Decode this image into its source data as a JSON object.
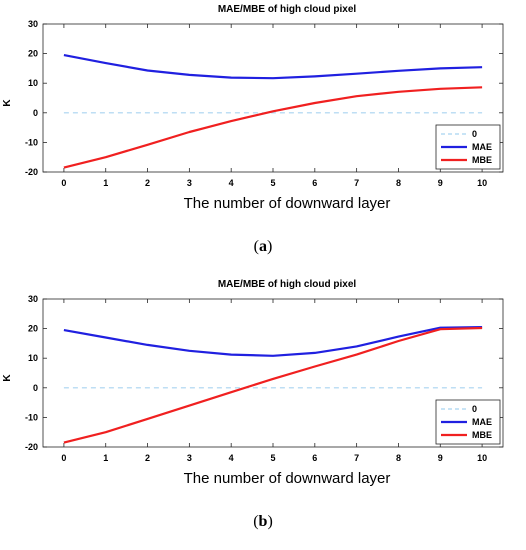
{
  "chart_data": [
    {
      "type": "line",
      "title": "MAE/MBE of high cloud pixel",
      "xlabel": "The number of downward layer",
      "ylabel": "K",
      "x": [
        0,
        1,
        2,
        3,
        4,
        5,
        6,
        7,
        8,
        9,
        10
      ],
      "xlim": [
        -0.5,
        10.5
      ],
      "ylim": [
        -20,
        30
      ],
      "yticks": [
        -20,
        -10,
        0,
        10,
        20,
        30
      ],
      "grid": false,
      "legend_position": "lower-right",
      "series": [
        {
          "name": "0",
          "values": [
            0,
            0,
            0,
            0,
            0,
            0,
            0,
            0,
            0,
            0,
            0
          ],
          "color": "#a8d4f0",
          "dashed": true
        },
        {
          "name": "MAE",
          "values": [
            19.5,
            16.8,
            14.3,
            12.8,
            11.9,
            11.7,
            12.3,
            13.2,
            14.2,
            15.0,
            15.4
          ],
          "color": "#2020e0",
          "dashed": false
        },
        {
          "name": "MBE",
          "values": [
            -18.5,
            -15.0,
            -10.8,
            -6.5,
            -2.8,
            0.5,
            3.3,
            5.6,
            7.1,
            8.1,
            8.6
          ],
          "color": "#f02020",
          "dashed": false
        }
      ]
    },
    {
      "type": "line",
      "title": "MAE/MBE of high cloud pixel",
      "xlabel": "The number of downward layer",
      "ylabel": "K",
      "x": [
        0,
        1,
        2,
        3,
        4,
        5,
        6,
        7,
        8,
        9,
        10
      ],
      "xlim": [
        -0.5,
        10.5
      ],
      "ylim": [
        -20,
        30
      ],
      "yticks": [
        -20,
        -10,
        0,
        10,
        20,
        30
      ],
      "grid": false,
      "legend_position": "lower-right",
      "series": [
        {
          "name": "0",
          "values": [
            0,
            0,
            0,
            0,
            0,
            0,
            0,
            0,
            0,
            0,
            0
          ],
          "color": "#a8d4f0",
          "dashed": true
        },
        {
          "name": "MAE",
          "values": [
            19.5,
            17.0,
            14.5,
            12.5,
            11.2,
            10.8,
            11.8,
            14.0,
            17.3,
            20.3,
            20.5
          ],
          "color": "#2020e0",
          "dashed": false
        },
        {
          "name": "MBE",
          "values": [
            -18.5,
            -15.0,
            -10.5,
            -6.0,
            -1.5,
            3.0,
            7.2,
            11.2,
            15.8,
            19.8,
            20.2
          ],
          "color": "#f02020",
          "dashed": false
        }
      ]
    }
  ],
  "captions": [
    {
      "paren_open": "(",
      "letter": "a",
      "paren_close": ")"
    },
    {
      "paren_open": "(",
      "letter": "b",
      "paren_close": ")"
    }
  ]
}
